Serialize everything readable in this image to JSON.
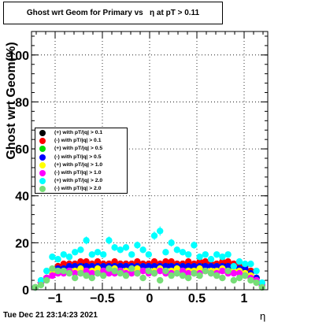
{
  "title": "Ghost wrt Geom for Primary vs   η at pT > 0.11",
  "datestamp": "Tue Dec 21 23:14:23 2021",
  "chart_data": {
    "type": "scatter",
    "title": "Ghost wrt Geom for Primary vs   η at pT > 0.11",
    "xlabel": "η",
    "ylabel": "Ghost wrt Geom(%)",
    "xlim": [
      -1.25,
      1.25
    ],
    "ylim": [
      0,
      110
    ],
    "xticks": [
      -1,
      -0.5,
      0,
      0.5,
      1
    ],
    "xtick_labels": [
      "−1",
      "−0.5",
      "0",
      "0.5",
      "1"
    ],
    "yticks": [
      0,
      20,
      40,
      60,
      80,
      100
    ],
    "ytick_labels": [
      "0",
      "20",
      "40",
      "60",
      "80",
      "100"
    ],
    "grid": true,
    "legend_position": "middle-left",
    "x": [
      -1.21,
      -1.15,
      -1.09,
      -1.03,
      -0.97,
      -0.91,
      -0.85,
      -0.79,
      -0.73,
      -0.67,
      -0.61,
      -0.55,
      -0.49,
      -0.43,
      -0.37,
      -0.31,
      -0.25,
      -0.19,
      -0.13,
      -0.07,
      -0.01,
      0.05,
      0.11,
      0.17,
      0.23,
      0.29,
      0.35,
      0.41,
      0.47,
      0.53,
      0.59,
      0.65,
      0.71,
      0.77,
      0.83,
      0.89,
      0.95,
      1.01,
      1.07,
      1.13,
      1.19
    ],
    "series": [
      {
        "name": "(+) with pT/|q| > 0.1",
        "color": "#000000",
        "values": [
          1,
          3,
          5,
          8,
          10,
          10,
          11,
          11,
          11,
          11,
          11,
          11,
          11,
          11,
          11,
          11,
          11,
          11,
          11,
          11,
          11,
          11,
          11,
          11,
          11,
          11,
          11,
          11,
          11,
          11,
          11,
          11,
          11,
          11,
          11,
          11,
          10,
          10,
          8,
          5,
          2
        ]
      },
      {
        "name": "(-) with pT/|q| > 0.1",
        "color": "#ff0000",
        "values": [
          1,
          3,
          5,
          8,
          10,
          11,
          11,
          11,
          12,
          12,
          11,
          12,
          11,
          11,
          12,
          11,
          11,
          11,
          12,
          11,
          11,
          12,
          11,
          12,
          12,
          11,
          11,
          12,
          11,
          12,
          12,
          11,
          11,
          12,
          12,
          11,
          10,
          10,
          8,
          5,
          2
        ]
      },
      {
        "name": "(+) with pT/|q| > 0.5",
        "color": "#00dd00",
        "values": [
          1,
          3,
          5,
          7,
          9,
          9,
          10,
          10,
          10,
          9,
          10,
          10,
          10,
          9,
          10,
          10,
          10,
          9,
          10,
          10,
          10,
          10,
          9,
          10,
          10,
          10,
          10,
          9,
          10,
          10,
          10,
          10,
          10,
          9,
          10,
          9,
          9,
          9,
          7,
          5,
          2
        ]
      },
      {
        "name": "(-) with pT/|q| > 0.5",
        "color": "#0000ff",
        "values": [
          1,
          3,
          5,
          7,
          9,
          9,
          10,
          10,
          10,
          10,
          10,
          10,
          10,
          10,
          10,
          10,
          10,
          10,
          10,
          10,
          10,
          10,
          10,
          10,
          10,
          10,
          10,
          10,
          10,
          10,
          10,
          10,
          10,
          10,
          10,
          10,
          9,
          9,
          7,
          5,
          2
        ]
      },
      {
        "name": "(+) with pT/|q| > 1.0",
        "color": "#ffff00",
        "values": [
          1,
          3,
          5,
          7,
          8,
          8,
          8,
          8,
          9,
          8,
          8,
          9,
          8,
          8,
          9,
          8,
          8,
          8,
          9,
          8,
          8,
          8,
          9,
          8,
          8,
          9,
          8,
          8,
          8,
          9,
          8,
          8,
          8,
          9,
          8,
          8,
          8,
          7,
          6,
          4,
          2
        ]
      },
      {
        "name": "(-) with pT/|q| > 1.0",
        "color": "#ff00ff",
        "values": [
          1,
          3,
          5,
          6,
          7,
          7,
          8,
          7,
          7,
          8,
          7,
          7,
          8,
          7,
          7,
          8,
          7,
          7,
          7,
          8,
          7,
          7,
          8,
          7,
          7,
          7,
          8,
          7,
          7,
          7,
          8,
          7,
          7,
          8,
          7,
          7,
          7,
          6,
          5,
          4,
          2
        ]
      },
      {
        "name": "(+) with pT/|q| > 2.0",
        "color": "#00ffff",
        "values": [
          1,
          4,
          8,
          14,
          13,
          15,
          14,
          16,
          17,
          21,
          15,
          16,
          15,
          21,
          18,
          17,
          18,
          15,
          19,
          17,
          15,
          23,
          25,
          16,
          20,
          17,
          16,
          15,
          19,
          14,
          15,
          13,
          15,
          14,
          15,
          10,
          12,
          11,
          11,
          8,
          3
        ]
      },
      {
        "name": "(-) with pT/|q| > 2.0",
        "color": "#77dd77",
        "values": [
          1,
          2,
          4,
          9,
          8,
          8,
          7,
          5,
          7,
          6,
          5,
          7,
          6,
          9,
          8,
          7,
          6,
          9,
          7,
          5,
          8,
          7,
          4,
          8,
          6,
          7,
          6,
          5,
          7,
          6,
          8,
          7,
          6,
          5,
          8,
          4,
          5,
          6,
          4,
          3,
          1
        ]
      }
    ]
  }
}
